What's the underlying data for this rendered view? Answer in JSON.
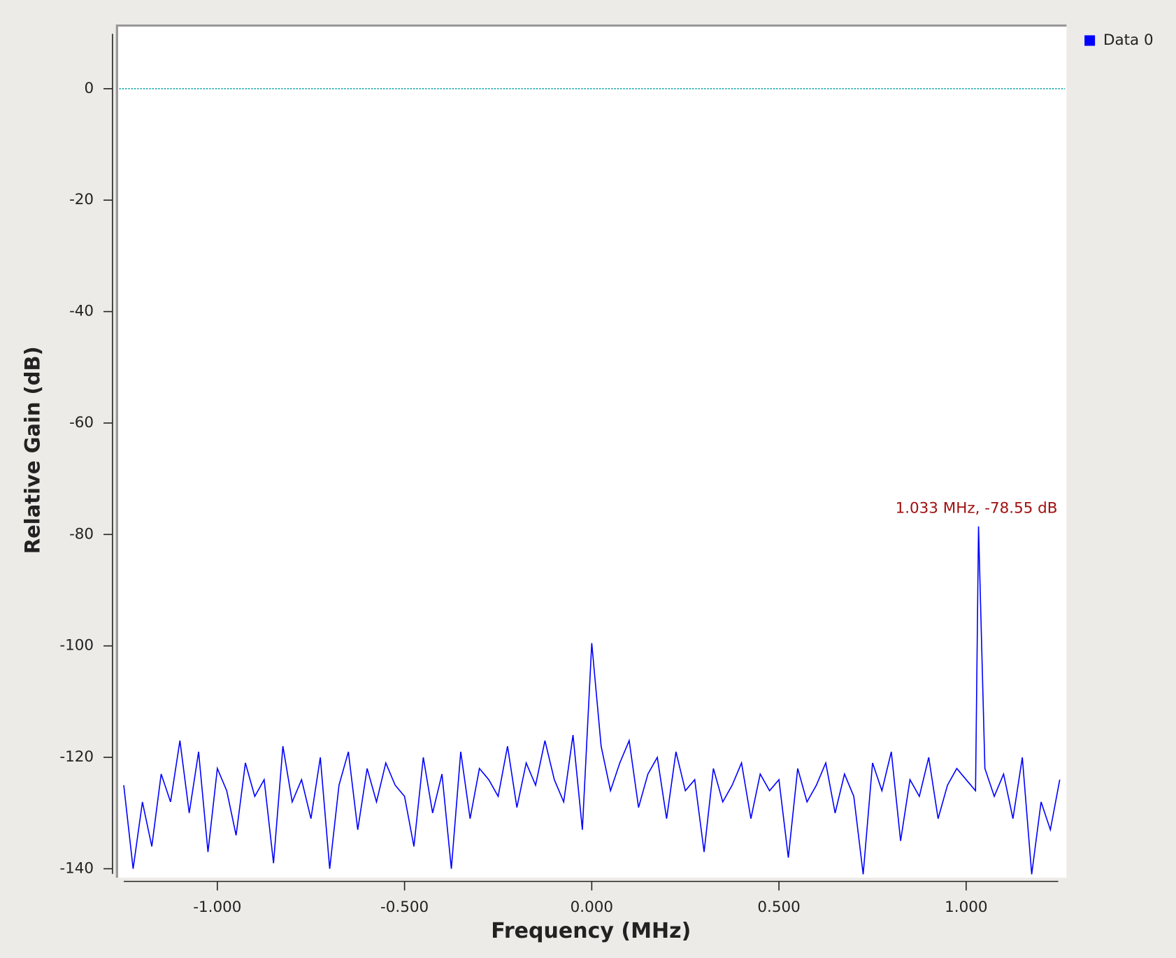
{
  "chart_data": {
    "type": "line",
    "xlabel": "Frequency (MHz)",
    "ylabel": "Relative Gain (dB)",
    "annotation": "1.033 MHz, -78.55 dB",
    "reference_line": 0,
    "reference_color": "#00a0a0",
    "xlim": [
      -1.266,
      1.268
    ],
    "ylim": [
      -141.6,
      11.2
    ],
    "xticks": [
      {
        "value": -1,
        "label": "-1.000"
      },
      {
        "value": -0.5,
        "label": "-0.500"
      },
      {
        "value": 0,
        "label": "0.000"
      },
      {
        "value": 0.5,
        "label": "0.500"
      },
      {
        "value": 1,
        "label": "1.000"
      }
    ],
    "yticks": [
      0,
      -20,
      -40,
      -60,
      -80,
      -100,
      -120,
      -140
    ],
    "legend": "upper right",
    "x": [
      -1.25,
      -1.225,
      -1.2,
      -1.175,
      -1.15,
      -1.125,
      -1.1,
      -1.075,
      -1.05,
      -1.025,
      -1,
      -0.975,
      -0.95,
      -0.925,
      -0.9,
      -0.875,
      -0.85,
      -0.825,
      -0.8,
      -0.775,
      -0.75,
      -0.725,
      -0.7,
      -0.675,
      -0.65,
      -0.625,
      -0.6,
      -0.575,
      -0.55,
      -0.525,
      -0.5,
      -0.475,
      -0.45,
      -0.425,
      -0.4,
      -0.375,
      -0.35,
      -0.325,
      -0.3,
      -0.275,
      -0.25,
      -0.225,
      -0.2,
      -0.175,
      -0.15,
      -0.125,
      -0.1,
      -0.075,
      -0.05,
      -0.025,
      0,
      0.025,
      0.05,
      0.075,
      0.1,
      0.125,
      0.15,
      0.175,
      0.2,
      0.225,
      0.25,
      0.275,
      0.3,
      0.325,
      0.35,
      0.375,
      0.4,
      0.425,
      0.45,
      0.475,
      0.5,
      0.525,
      0.55,
      0.575,
      0.6,
      0.625,
      0.65,
      0.675,
      0.7,
      0.725,
      0.75,
      0.775,
      0.8,
      0.825,
      0.85,
      0.875,
      0.9,
      0.925,
      0.95,
      0.975,
      1,
      1.025,
      1.033,
      1.05,
      1.075,
      1.1,
      1.125,
      1.15,
      1.175,
      1.2,
      1.225,
      1.25
    ],
    "series": [
      {
        "name": "Data 0",
        "color": "#0000ff",
        "values": [
          -125,
          -140,
          -128,
          -136,
          -123,
          -128,
          -117,
          -130,
          -119,
          -137,
          -122,
          -126,
          -134,
          -121,
          -127,
          -124,
          -139,
          -118,
          -128,
          -124,
          -131,
          -120,
          -140,
          -125,
          -119,
          -133,
          -122,
          -128,
          -121,
          -125,
          -127,
          -136,
          -120,
          -130,
          -123,
          -140,
          -119,
          -131,
          -122,
          -124,
          -127,
          -118,
          -129,
          -121,
          -125,
          -117,
          -124,
          -128,
          -116,
          -133,
          -99.5,
          -118,
          -126,
          -121,
          -117,
          -129,
          -123,
          -120,
          -131,
          -119,
          -126,
          -124,
          -137,
          -122,
          -128,
          -125,
          -121,
          -131,
          -123,
          -126,
          -124,
          -138,
          -122,
          -128,
          -125,
          -121,
          -130,
          -123,
          -127,
          -141,
          -121,
          -126,
          -119,
          -135,
          -124,
          -127,
          -120,
          -131,
          -125,
          -122,
          -124,
          -126,
          -78.55,
          -122,
          -127,
          -123,
          -131,
          -120,
          -141,
          -128,
          -133,
          -124
        ]
      }
    ]
  }
}
